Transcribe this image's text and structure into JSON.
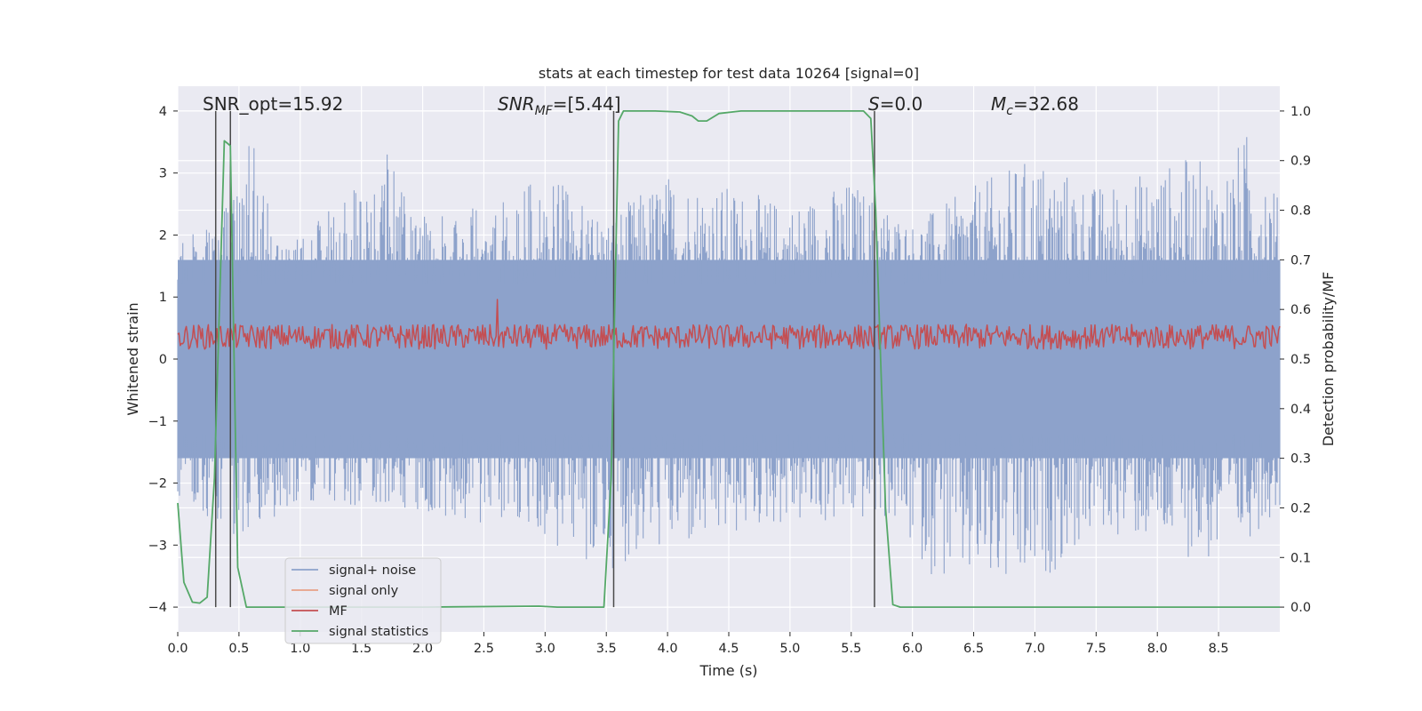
{
  "colors": {
    "background": "#eaeaf2",
    "grid": "#ffffff",
    "noise": "#8da2cb",
    "signal_only": "#e8a087",
    "mf": "#c44e52",
    "statistics": "#55a868",
    "vline": "#4a4a4a"
  },
  "chart_data": {
    "type": "line",
    "title": "stats at each timestep for test data 10264 [signal=0]",
    "xlabel": "Time (s)",
    "ylabel_left": "Whitened strain",
    "ylabel_right": "Detection probability/MF",
    "xlim": [
      0.0,
      9.0
    ],
    "ylim_left": [
      -4.4,
      4.4
    ],
    "ylim_right": [
      -0.05,
      1.05
    ],
    "xticks": [
      "0.0",
      "0.5",
      "1.0",
      "1.5",
      "2.0",
      "2.5",
      "3.0",
      "3.5",
      "4.0",
      "4.5",
      "5.0",
      "5.5",
      "6.0",
      "6.5",
      "7.0",
      "7.5",
      "8.0",
      "8.5"
    ],
    "yticks_left": [
      "4",
      "3",
      "2",
      "1",
      "0",
      "−1",
      "−2",
      "−3",
      "−4"
    ],
    "yticks_right": [
      "1.0",
      "0.9",
      "0.8",
      "0.7",
      "0.6",
      "0.5",
      "0.4",
      "0.3",
      "0.2",
      "0.1",
      "0.0"
    ],
    "grid": true,
    "legend_position": "lower-left",
    "annotations": {
      "snr_opt": "SNR_opt=15.92",
      "snr_mf": "=[5.44]",
      "s_value": "=0.0",
      "mc_value": "=32.68"
    },
    "vertical_lines_x": [
      0.31,
      0.43,
      3.56,
      5.69
    ],
    "series": [
      {
        "name": "signal+ noise",
        "kind": "dense noise band",
        "envelope_upper": [
          [
            0.0,
            1.9
          ],
          [
            0.3,
            2.2
          ],
          [
            0.5,
            3.0
          ],
          [
            0.6,
            3.9
          ],
          [
            0.8,
            1.9
          ],
          [
            1.0,
            2.0
          ],
          [
            1.3,
            2.5
          ],
          [
            1.7,
            3.4
          ],
          [
            2.0,
            2.3
          ],
          [
            2.5,
            2.5
          ],
          [
            3.0,
            3.0
          ],
          [
            3.5,
            2.3
          ],
          [
            4.0,
            3.0
          ],
          [
            4.5,
            2.8
          ],
          [
            5.0,
            2.5
          ],
          [
            5.5,
            2.9
          ],
          [
            6.0,
            2.2
          ],
          [
            6.5,
            2.8
          ],
          [
            7.0,
            3.3
          ],
          [
            7.5,
            2.8
          ],
          [
            8.0,
            3.1
          ],
          [
            8.3,
            3.3
          ],
          [
            8.5,
            3.0
          ],
          [
            8.8,
            3.9
          ],
          [
            9.0,
            2.5
          ]
        ],
        "envelope_lower": [
          [
            0.0,
            -2.2
          ],
          [
            0.5,
            -2.9
          ],
          [
            1.0,
            -2.3
          ],
          [
            1.8,
            -2.4
          ],
          [
            2.3,
            -2.8
          ],
          [
            2.8,
            -2.7
          ],
          [
            3.4,
            -3.5
          ],
          [
            3.9,
            -3.1
          ],
          [
            4.3,
            -3.1
          ],
          [
            4.8,
            -2.7
          ],
          [
            5.3,
            -2.7
          ],
          [
            5.8,
            -2.6
          ],
          [
            6.2,
            -3.6
          ],
          [
            6.9,
            -3.9
          ],
          [
            7.5,
            -2.8
          ],
          [
            8.0,
            -3.0
          ],
          [
            8.5,
            -3.4
          ],
          [
            9.0,
            -2.4
          ]
        ]
      },
      {
        "name": "signal only",
        "values": []
      },
      {
        "name": "MF",
        "axis": "right",
        "baseline_range": [
          0.52,
          0.57
        ],
        "peaks": [
          [
            2.61,
            0.62
          ]
        ]
      },
      {
        "name": "signal statistics",
        "axis": "right",
        "points": [
          [
            0.0,
            0.21
          ],
          [
            0.05,
            0.05
          ],
          [
            0.12,
            0.01
          ],
          [
            0.18,
            0.008
          ],
          [
            0.24,
            0.02
          ],
          [
            0.3,
            0.26
          ],
          [
            0.38,
            0.94
          ],
          [
            0.43,
            0.93
          ],
          [
            0.49,
            0.08
          ],
          [
            0.56,
            0.0
          ],
          [
            1.0,
            0.0
          ],
          [
            2.0,
            0.0
          ],
          [
            2.95,
            0.002
          ],
          [
            3.1,
            0.0
          ],
          [
            3.48,
            0.0
          ],
          [
            3.54,
            0.26
          ],
          [
            3.6,
            0.98
          ],
          [
            3.64,
            1.0
          ],
          [
            3.9,
            1.0
          ],
          [
            4.1,
            0.998
          ],
          [
            4.2,
            0.99
          ],
          [
            4.25,
            0.98
          ],
          [
            4.32,
            0.98
          ],
          [
            4.42,
            0.995
          ],
          [
            4.6,
            1.0
          ],
          [
            5.6,
            1.0
          ],
          [
            5.66,
            0.985
          ],
          [
            5.7,
            0.8
          ],
          [
            5.78,
            0.2
          ],
          [
            5.84,
            0.005
          ],
          [
            5.9,
            0.0
          ],
          [
            8.9,
            0.0
          ],
          [
            9.0,
            0.0
          ]
        ]
      }
    ]
  }
}
